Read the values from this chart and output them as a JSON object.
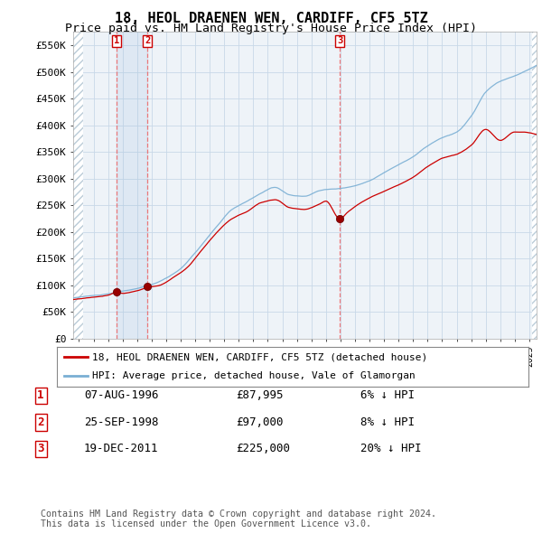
{
  "title": "18, HEOL DRAENEN WEN, CARDIFF, CF5 5TZ",
  "subtitle": "Price paid vs. HM Land Registry's House Price Index (HPI)",
  "ylabel_ticks": [
    "£0",
    "£50K",
    "£100K",
    "£150K",
    "£200K",
    "£250K",
    "£300K",
    "£350K",
    "£400K",
    "£450K",
    "£500K",
    "£550K"
  ],
  "ytick_values": [
    0,
    50000,
    100000,
    150000,
    200000,
    250000,
    300000,
    350000,
    400000,
    450000,
    500000,
    550000
  ],
  "ylim": [
    0,
    575000
  ],
  "xmin": 1993.6,
  "xmax": 2025.5,
  "sale_dates": [
    1996.58,
    1998.72,
    2011.96
  ],
  "sale_prices": [
    87995,
    97000,
    225000
  ],
  "sale_labels": [
    "1",
    "2",
    "3"
  ],
  "legend_entries": [
    "18, HEOL DRAENEN WEN, CARDIFF, CF5 5TZ (detached house)",
    "HPI: Average price, detached house, Vale of Glamorgan"
  ],
  "table_rows": [
    [
      "1",
      "07-AUG-1996",
      "£87,995",
      "6% ↓ HPI"
    ],
    [
      "2",
      "25-SEP-1998",
      "£97,000",
      "8% ↓ HPI"
    ],
    [
      "3",
      "19-DEC-2011",
      "£225,000",
      "20% ↓ HPI"
    ]
  ],
  "footnote": "Contains HM Land Registry data © Crown copyright and database right 2024.\nThis data is licensed under the Open Government Licence v3.0.",
  "line_color_red": "#CC0000",
  "line_color_blue": "#7AAFD4",
  "dot_color": "#990000",
  "vline_color": "#EE6666",
  "grid_color": "#C8D8E8",
  "title_fontsize": 11,
  "subtitle_fontsize": 9.5,
  "tick_fontsize": 8
}
